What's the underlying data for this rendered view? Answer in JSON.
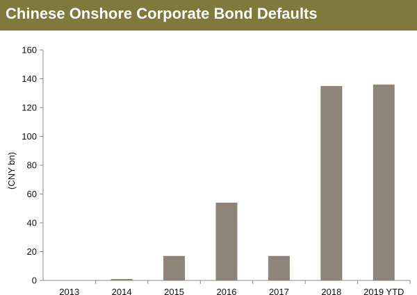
{
  "title": "Chinese Onshore Corporate Bond Defaults",
  "colors": {
    "title_bar": "#7f7a3b",
    "title_text": "#ffffff",
    "bar": "#8d857a",
    "axis": "#888888"
  },
  "chart_data": {
    "type": "bar",
    "title": "Chinese Onshore Corporate Bond Defaults",
    "xlabel": "",
    "ylabel": "(CNY bn)",
    "categories": [
      "2013",
      "2014",
      "2015",
      "2016",
      "2017",
      "2018",
      "2019 YTD"
    ],
    "values": [
      0,
      1,
      17,
      54,
      17,
      135,
      136
    ],
    "ylim": [
      0,
      160
    ],
    "yticks": [
      0,
      20,
      40,
      60,
      80,
      100,
      120,
      140,
      160
    ],
    "grid": false,
    "legend": "none"
  }
}
